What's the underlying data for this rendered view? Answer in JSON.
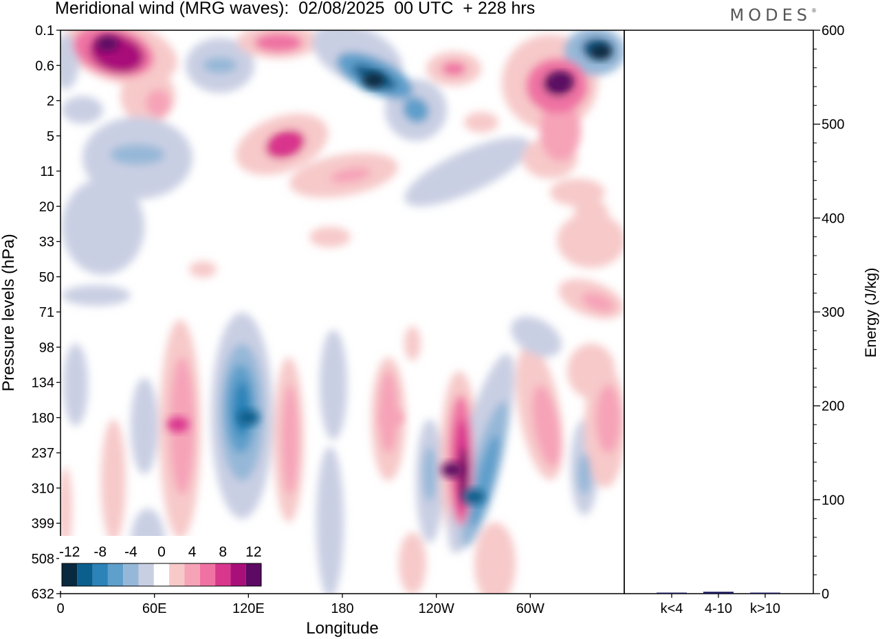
{
  "title": "Meridional wind (MRG waves):  02/08/2025  00 UTC  + 228 hrs",
  "logo": "MODES",
  "chart_data": [
    {
      "type": "heatmap",
      "title": "Meridional wind (MRG waves)",
      "xlabel": "Longitude",
      "ylabel": "Pressure levels (hPa)",
      "x_ticks": [
        "0",
        "60E",
        "120E",
        "180",
        "120W",
        "60W"
      ],
      "y_ticks": [
        "0.1",
        "0.6",
        "2",
        "5",
        "11",
        "20",
        "33",
        "50",
        "71",
        "98",
        "134",
        "180",
        "237",
        "310",
        "399",
        "508",
        "632"
      ],
      "colorbar": {
        "labels": [
          "-12",
          "-8",
          "-4",
          "0",
          "4",
          "8",
          "12"
        ],
        "levels": [
          -14,
          -12,
          -10,
          -8,
          -6,
          -4,
          -2,
          2,
          4,
          6,
          8,
          10,
          12,
          14
        ],
        "colors": [
          "#08293f",
          "#0b5f8c",
          "#2b83b8",
          "#5f9fcb",
          "#96b8d8",
          "#c9cfe3",
          "#ffffff",
          "#f7c9c9",
          "#f6a3b8",
          "#ef72a3",
          "#d9368d",
          "#a90f79",
          "#5c0a63"
        ]
      },
      "features": [
        {
          "kind": "max",
          "lon": 30,
          "level": "0.2",
          "value": 13
        },
        {
          "kind": "min",
          "lon": 200,
          "level": "1",
          "value": -13
        },
        {
          "kind": "min",
          "lon": 345,
          "level": "0.3",
          "value": -13
        },
        {
          "kind": "max",
          "lon": 320,
          "level": "1",
          "value": 12
        },
        {
          "kind": "max",
          "lon": 143,
          "level": "6",
          "value": 9
        },
        {
          "kind": "min",
          "lon": 120,
          "level": "180",
          "value": -12
        },
        {
          "kind": "max",
          "lon": 250,
          "level": "270",
          "value": 13
        },
        {
          "kind": "min",
          "lon": 264,
          "level": "330",
          "value": -11
        },
        {
          "kind": "max",
          "lon": 75,
          "level": "190",
          "value": 8
        },
        {
          "kind": "max",
          "lon": 212,
          "level": "180",
          "value": 5
        }
      ]
    },
    {
      "type": "bar",
      "ylabel": "Energy (J/kg)",
      "categories": [
        "k<4",
        "4-10",
        "k>10"
      ],
      "values": [
        0.5,
        2,
        0.5
      ],
      "ylim": [
        0,
        600
      ],
      "y_ticks": [
        "0",
        "100",
        "200",
        "300",
        "400",
        "500",
        "600"
      ]
    }
  ]
}
